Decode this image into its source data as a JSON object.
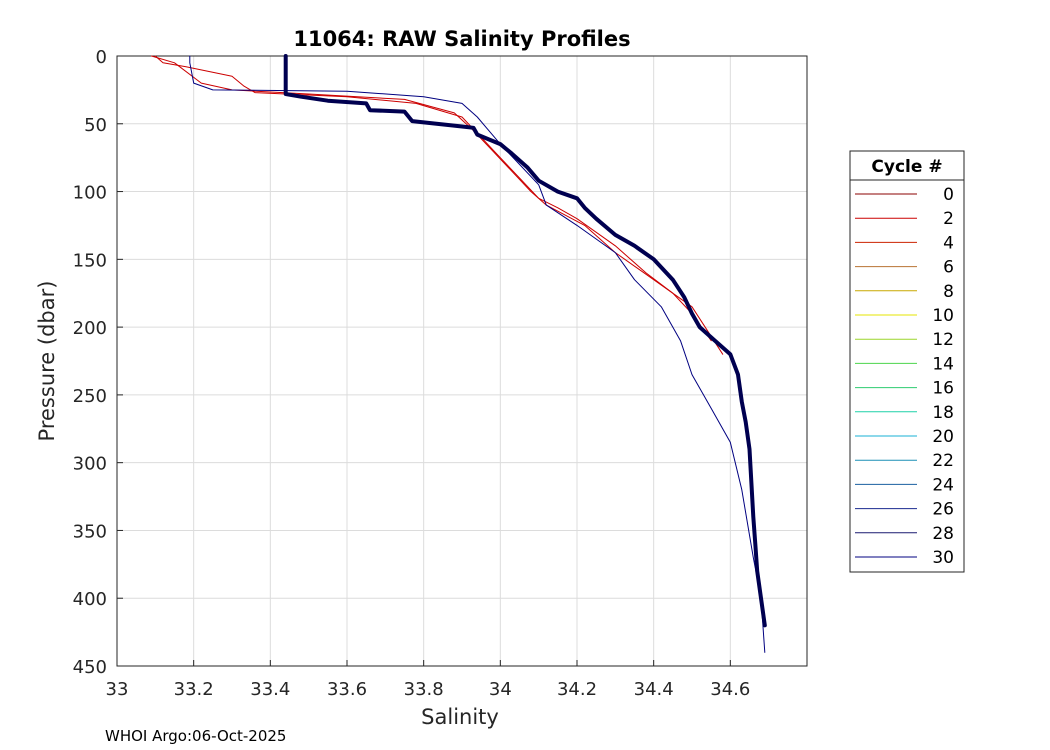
{
  "chart_data": {
    "type": "line",
    "title": "11064: RAW Salinity Profiles",
    "xlabel": "Salinity",
    "ylabel": "Pressure (dbar)",
    "xlim": [
      33.0,
      34.8
    ],
    "ylim": [
      0,
      450
    ],
    "y_reversed": true,
    "grid": true,
    "x_ticks": [
      33,
      33.2,
      33.4,
      33.6,
      33.8,
      34,
      34.2,
      34.4,
      34.6
    ],
    "x_tick_labels": [
      "33",
      "33.2",
      "33.4",
      "33.6",
      "33.8",
      "34",
      "34.2",
      "34.4",
      "34.6"
    ],
    "y_ticks": [
      0,
      50,
      100,
      150,
      200,
      250,
      300,
      350,
      400,
      450
    ],
    "y_tick_labels": [
      "0",
      "50",
      "100",
      "150",
      "200",
      "250",
      "300",
      "350",
      "400",
      "450"
    ],
    "legend": {
      "title": "Cycle #",
      "placement": "right",
      "entries": [
        {
          "label": "0",
          "color": "#8b0000"
        },
        {
          "label": "2",
          "color": "#cc0000"
        },
        {
          "label": "4",
          "color": "#cc2200"
        },
        {
          "label": "6",
          "color": "#b87333"
        },
        {
          "label": "8",
          "color": "#c8a800"
        },
        {
          "label": "10",
          "color": "#e6e600"
        },
        {
          "label": "12",
          "color": "#9bd62b"
        },
        {
          "label": "14",
          "color": "#4cd44c"
        },
        {
          "label": "16",
          "color": "#2ecc71"
        },
        {
          "label": "18",
          "color": "#1fd1a8"
        },
        {
          "label": "20",
          "color": "#1ab0d6"
        },
        {
          "label": "22",
          "color": "#1a8fb5"
        },
        {
          "label": "24",
          "color": "#1a5fa0"
        },
        {
          "label": "26",
          "color": "#1a2a8f"
        },
        {
          "label": "28",
          "color": "#1a1a70"
        },
        {
          "label": "30",
          "color": "#000080"
        }
      ]
    },
    "series": [
      {
        "name": "0",
        "color": "#cc0000",
        "width": 1,
        "points": [
          [
            33.1,
            0
          ],
          [
            33.12,
            5
          ],
          [
            33.18,
            8
          ],
          [
            33.3,
            15
          ],
          [
            33.33,
            22
          ],
          [
            33.36,
            27
          ],
          [
            33.6,
            30
          ],
          [
            33.78,
            35
          ],
          [
            33.9,
            45
          ],
          [
            33.95,
            60
          ],
          [
            34.0,
            75
          ],
          [
            34.05,
            90
          ],
          [
            34.1,
            105
          ],
          [
            34.15,
            112
          ],
          [
            34.2,
            120
          ],
          [
            34.3,
            140
          ],
          [
            34.38,
            160
          ],
          [
            34.45,
            175
          ],
          [
            34.5,
            190
          ],
          [
            34.55,
            210
          ]
        ]
      },
      {
        "name": "4",
        "color": "#cc0000",
        "width": 1,
        "points": [
          [
            33.09,
            0
          ],
          [
            33.15,
            5
          ],
          [
            33.22,
            20
          ],
          [
            33.3,
            25
          ],
          [
            33.5,
            28
          ],
          [
            33.75,
            32
          ],
          [
            33.88,
            42
          ],
          [
            33.93,
            55
          ],
          [
            33.98,
            70
          ],
          [
            34.03,
            85
          ],
          [
            34.08,
            100
          ],
          [
            34.12,
            110
          ],
          [
            34.22,
            125
          ],
          [
            34.3,
            145
          ],
          [
            34.4,
            165
          ],
          [
            34.5,
            185
          ],
          [
            34.58,
            220
          ]
        ]
      },
      {
        "name": "30",
        "color": "#000080",
        "width": 1,
        "points": [
          [
            33.19,
            0
          ],
          [
            33.19,
            5
          ],
          [
            33.2,
            20
          ],
          [
            33.25,
            25
          ],
          [
            33.6,
            26
          ],
          [
            33.8,
            30
          ],
          [
            33.9,
            35
          ],
          [
            33.94,
            45
          ],
          [
            33.97,
            55
          ],
          [
            34.0,
            65
          ],
          [
            34.05,
            80
          ],
          [
            34.1,
            95
          ],
          [
            34.12,
            110
          ],
          [
            34.2,
            125
          ],
          [
            34.3,
            145
          ],
          [
            34.35,
            165
          ],
          [
            34.42,
            185
          ],
          [
            34.47,
            210
          ],
          [
            34.5,
            235
          ],
          [
            34.55,
            260
          ],
          [
            34.6,
            285
          ],
          [
            34.63,
            320
          ],
          [
            34.66,
            370
          ],
          [
            34.68,
            400
          ],
          [
            34.69,
            440
          ]
        ]
      },
      {
        "name": "26",
        "color": "#000050",
        "width": 4,
        "points": [
          [
            33.44,
            0
          ],
          [
            33.44,
            28
          ],
          [
            33.48,
            30
          ],
          [
            33.55,
            33
          ],
          [
            33.65,
            35
          ],
          [
            33.66,
            40
          ],
          [
            33.75,
            41
          ],
          [
            33.77,
            48
          ],
          [
            33.9,
            52
          ],
          [
            33.93,
            53
          ],
          [
            33.94,
            58
          ],
          [
            34.0,
            65
          ],
          [
            34.03,
            72
          ],
          [
            34.07,
            82
          ],
          [
            34.1,
            92
          ],
          [
            34.15,
            100
          ],
          [
            34.2,
            105
          ],
          [
            34.22,
            112
          ],
          [
            34.25,
            120
          ],
          [
            34.3,
            132
          ],
          [
            34.35,
            140
          ],
          [
            34.4,
            150
          ],
          [
            34.45,
            165
          ],
          [
            34.48,
            178
          ],
          [
            34.5,
            190
          ],
          [
            34.52,
            200
          ],
          [
            34.56,
            210
          ],
          [
            34.6,
            220
          ],
          [
            34.62,
            235
          ],
          [
            34.63,
            255
          ],
          [
            34.64,
            270
          ],
          [
            34.65,
            290
          ],
          [
            34.655,
            315
          ],
          [
            34.66,
            340
          ],
          [
            34.665,
            360
          ],
          [
            34.67,
            380
          ],
          [
            34.68,
            400
          ],
          [
            34.69,
            420
          ]
        ]
      }
    ]
  },
  "footer": "WHOI Argo:06-Oct-2025"
}
